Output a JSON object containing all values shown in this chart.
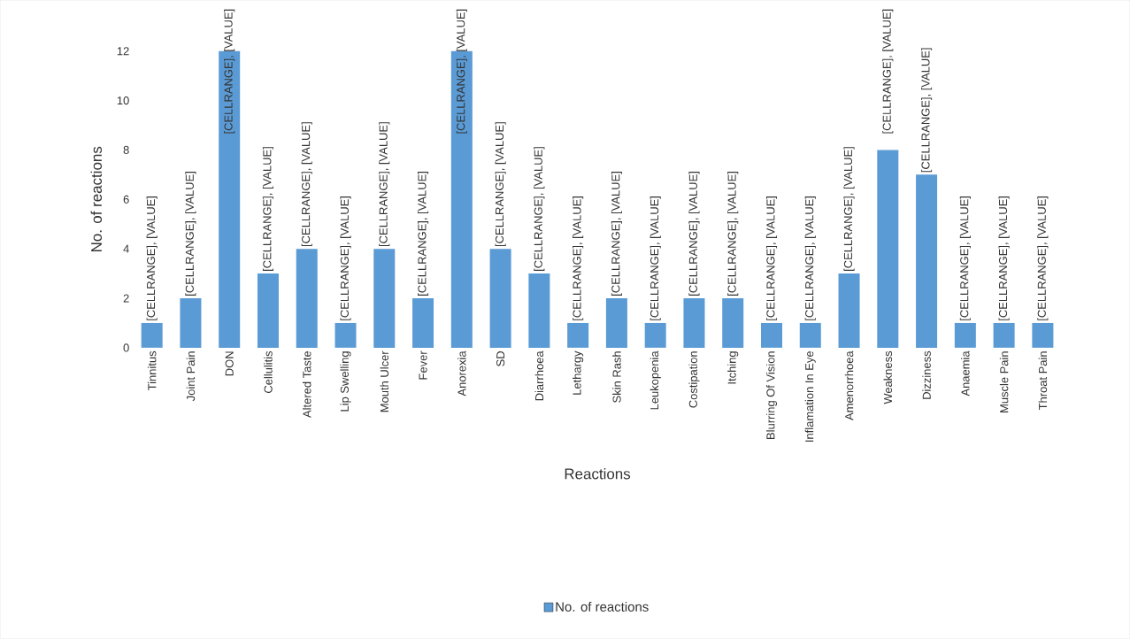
{
  "chart_data": {
    "type": "bar",
    "xlabel": "Reactions",
    "ylabel": "No. of reactions",
    "legend": "bottom",
    "ylim": [
      0,
      12
    ],
    "yticks": [
      0,
      2,
      4,
      6,
      8,
      10,
      12
    ],
    "categories": [
      "Tinnitus",
      "Joint Pain",
      "DON",
      "Cellulitis",
      "Altered Taste",
      "Lip Swelling",
      "Mouth Ulcer",
      "Fever",
      "Anorexia",
      "SD",
      "Diarrhoea",
      "Lethargy",
      "Skin Rash",
      "Leukopenia",
      "Costipation",
      "Itching",
      "Blurring Of Vision",
      "Inflamation In Eye",
      "Amenorrhoea",
      "Weakness",
      "Dizziness",
      "Anaemia",
      "Muscle Pain",
      "Throat Pain"
    ],
    "series": [
      {
        "name": "No. of reactions",
        "color": "#5b9bd5",
        "values": [
          1,
          2,
          12,
          3,
          4,
          1,
          4,
          2,
          12,
          4,
          3,
          1,
          2,
          1,
          2,
          2,
          1,
          1,
          3,
          8,
          7,
          1,
          1,
          1
        ],
        "value_labels": [
          "[CELLRANGE], [VALUE]",
          "[CELLRANGE], [VALUE]",
          "[CELLRANGE], [VALUE]",
          "[CELLRANGE], [VALUE]",
          "[CELLRANGE], [VALUE]",
          "[CELLRANGE], [VALUE]",
          "[CELLRANGE], [VALUE]",
          "[CELLRANGE], [VALUE]",
          "[CELLRANGE], [VALUE]",
          "[CELLRANGE], [VALUE]",
          "[CELLRANGE], [VALUE]",
          "[CELLRANGE], [VALUE]",
          "[CELLRANGE], [VALUE]",
          "[CELLRANGE], [VALUE]",
          "[CELLRANGE], [VALUE]",
          "[CELLRANGE], [VALUE]",
          "[CELLRANGE], [VALUE]",
          "[CELLRANGE], [VALUE]",
          "[CELLRANGE], [VALUE]",
          "[CELLRANGE], [VALUE]",
          "[CELLRANGE], [VALUE]",
          "[CELLRANGE], [VALUE]",
          "[CELLRANGE], [VALUE]",
          "[CELLRANGE], [VALUE]"
        ]
      }
    ]
  }
}
